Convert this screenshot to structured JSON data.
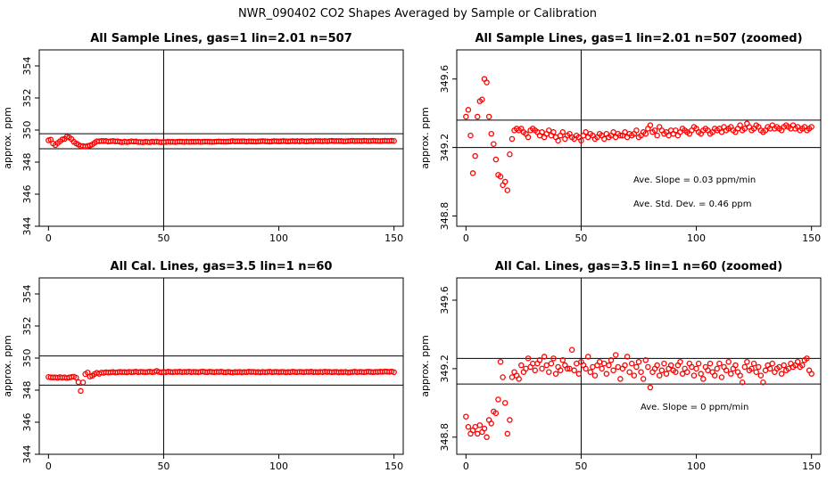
{
  "figure_title": "NWR_090402  CO2 Shapes Averaged by Sample or Calibration",
  "colors": {
    "points": "#ff0000",
    "axes": "#000000"
  },
  "chart_data": [
    {
      "type": "scatter",
      "title": "All Sample Lines, gas=1 lin=2.01 n=507",
      "xlabel": "",
      "ylabel": "approx. ppm",
      "xlim": [
        -4,
        154
      ],
      "ylim": [
        344,
        355
      ],
      "xticks": [
        0,
        50,
        100,
        150
      ],
      "yticks": [
        344,
        346,
        348,
        350,
        352,
        354
      ],
      "hlines": [
        349.77,
        348.83
      ],
      "vline": 50,
      "annotations": [],
      "x": [
        0,
        1,
        2,
        3,
        4,
        5,
        6,
        7,
        8,
        9,
        10,
        11,
        12,
        13,
        14,
        15,
        16,
        17,
        18,
        19,
        20,
        21,
        22,
        23,
        24,
        25,
        26,
        27,
        28,
        29,
        30,
        31,
        32,
        33,
        34,
        35,
        36,
        37,
        38,
        39,
        40,
        41,
        42,
        43,
        44,
        45,
        46,
        47,
        48,
        49,
        50,
        51,
        52,
        53,
        54,
        55,
        56,
        57,
        58,
        59,
        60,
        61,
        62,
        63,
        64,
        65,
        66,
        67,
        68,
        69,
        70,
        71,
        72,
        73,
        74,
        75,
        76,
        77,
        78,
        79,
        80,
        81,
        82,
        83,
        84,
        85,
        86,
        87,
        88,
        89,
        90,
        91,
        92,
        93,
        94,
        95,
        96,
        97,
        98,
        99,
        100,
        101,
        102,
        103,
        104,
        105,
        106,
        107,
        108,
        109,
        110,
        111,
        112,
        113,
        114,
        115,
        116,
        117,
        118,
        119,
        120,
        121,
        122,
        123,
        124,
        125,
        126,
        127,
        128,
        129,
        130,
        131,
        132,
        133,
        134,
        135,
        136,
        137,
        138,
        139,
        140,
        141,
        142,
        143,
        144,
        145,
        146,
        147,
        148,
        149,
        150
      ],
      "y": [
        349.36,
        349.4,
        349.16,
        349.06,
        349.19,
        349.3,
        349.42,
        349.45,
        349.58,
        349.54,
        349.44,
        349.27,
        349.17,
        349.09,
        349.01,
        349.0,
        348.97,
        349.01,
        349.04,
        349.1,
        349.2,
        349.3,
        349.3,
        349.32,
        349.31,
        349.32,
        349.28,
        349.3,
        349.32,
        349.29,
        349.3,
        349.27,
        349.24,
        349.28,
        349.25,
        349.27,
        349.3,
        349.28,
        349.29,
        349.25,
        349.26,
        349.24,
        349.27,
        349.26,
        349.24,
        349.28,
        349.26,
        349.28,
        349.25,
        349.24,
        349.26,
        349.25,
        349.28,
        349.26,
        349.27,
        349.25,
        349.27,
        349.28,
        349.27,
        349.26,
        349.28,
        349.26,
        349.27,
        349.27,
        349.27,
        349.28,
        349.26,
        349.27,
        349.28,
        349.28,
        349.27,
        349.26,
        349.27,
        349.28,
        349.29,
        349.28,
        349.28,
        349.27,
        349.28,
        349.29,
        349.31,
        349.29,
        349.3,
        349.29,
        349.3,
        349.3,
        349.28,
        349.3,
        349.29,
        349.29,
        349.28,
        349.29,
        349.3,
        349.31,
        349.3,
        349.29,
        349.28,
        349.29,
        349.31,
        349.3,
        349.29,
        349.3,
        349.31,
        349.3,
        349.29,
        349.3,
        349.31,
        349.3,
        349.31,
        349.29,
        349.32,
        349.3,
        349.29,
        349.3,
        349.31,
        349.3,
        349.32,
        349.31,
        349.31,
        349.3,
        349.32,
        349.3,
        349.32,
        349.33,
        349.31,
        349.32,
        349.31,
        349.32,
        349.3,
        349.3,
        349.31,
        349.32,
        349.33,
        349.31,
        349.32,
        349.32,
        349.31,
        349.33,
        349.32,
        349.31,
        349.32,
        349.33,
        349.32,
        349.32,
        349.31,
        349.32,
        349.33,
        349.32,
        349.32,
        349.33,
        349.32
      ]
    },
    {
      "type": "scatter",
      "title": "All Sample Lines, gas=1 lin=2.01 n=507 (zoomed)",
      "xlabel": "",
      "ylabel": "approx. ppm",
      "xlim": [
        -4,
        154
      ],
      "ylim": [
        348.74,
        349.77
      ],
      "xticks": [
        0,
        50,
        100,
        150
      ],
      "yticks": [
        348.8,
        349.2,
        349.6
      ],
      "hlines": [
        349.36,
        349.2
      ],
      "vline": 50,
      "annotations": [
        "Ave. Slope =  0.03  ppm/min",
        "Ave. Std. Dev. =  0.46  ppm"
      ],
      "x": [
        0,
        1,
        2,
        3,
        4,
        5,
        6,
        7,
        8,
        9,
        10,
        11,
        12,
        13,
        14,
        15,
        16,
        17,
        18,
        19,
        20,
        21,
        22,
        23,
        24,
        25,
        26,
        27,
        28,
        29,
        30,
        31,
        32,
        33,
        34,
        35,
        36,
        37,
        38,
        39,
        40,
        41,
        42,
        43,
        44,
        45,
        46,
        47,
        48,
        49,
        50,
        51,
        52,
        53,
        54,
        55,
        56,
        57,
        58,
        59,
        60,
        61,
        62,
        63,
        64,
        65,
        66,
        67,
        68,
        69,
        70,
        71,
        72,
        73,
        74,
        75,
        76,
        77,
        78,
        79,
        80,
        81,
        82,
        83,
        84,
        85,
        86,
        87,
        88,
        89,
        90,
        91,
        92,
        93,
        94,
        95,
        96,
        97,
        98,
        99,
        100,
        101,
        102,
        103,
        104,
        105,
        106,
        107,
        108,
        109,
        110,
        111,
        112,
        113,
        114,
        115,
        116,
        117,
        118,
        119,
        120,
        121,
        122,
        123,
        124,
        125,
        126,
        127,
        128,
        129,
        130,
        131,
        132,
        133,
        134,
        135,
        136,
        137,
        138,
        139,
        140,
        141,
        142,
        143,
        144,
        145,
        146,
        147,
        148,
        149,
        150
      ],
      "y": [
        349.38,
        349.42,
        349.27,
        349.05,
        349.15,
        349.38,
        349.47,
        349.48,
        349.6,
        349.58,
        349.38,
        349.28,
        349.22,
        349.13,
        349.04,
        349.03,
        348.98,
        349.0,
        348.95,
        349.16,
        349.25,
        349.3,
        349.31,
        349.3,
        349.31,
        349.29,
        349.28,
        349.26,
        349.3,
        349.31,
        349.3,
        349.29,
        349.27,
        349.29,
        349.26,
        349.28,
        349.3,
        349.27,
        349.29,
        349.26,
        349.24,
        349.27,
        349.29,
        349.25,
        349.27,
        349.28,
        349.26,
        349.25,
        349.27,
        349.26,
        349.24,
        349.27,
        349.29,
        349.26,
        349.28,
        349.27,
        349.25,
        349.26,
        349.28,
        349.27,
        349.25,
        349.28,
        349.26,
        349.27,
        349.29,
        349.26,
        349.28,
        349.27,
        349.27,
        349.29,
        349.26,
        349.28,
        349.27,
        349.28,
        349.3,
        349.26,
        349.27,
        349.29,
        349.28,
        349.31,
        349.33,
        349.29,
        349.3,
        349.27,
        349.32,
        349.3,
        349.28,
        349.29,
        349.27,
        349.3,
        349.28,
        349.3,
        349.27,
        349.29,
        349.31,
        349.3,
        349.29,
        349.28,
        349.3,
        349.32,
        349.31,
        349.29,
        349.28,
        349.3,
        349.31,
        349.3,
        349.28,
        349.29,
        349.31,
        349.3,
        349.31,
        349.29,
        349.32,
        349.3,
        349.31,
        349.32,
        349.3,
        349.29,
        349.31,
        349.33,
        349.3,
        349.31,
        349.34,
        349.32,
        349.3,
        349.31,
        349.33,
        349.32,
        349.3,
        349.29,
        349.3,
        349.32,
        349.31,
        349.33,
        349.31,
        349.32,
        349.31,
        349.3,
        349.32,
        349.33,
        349.32,
        349.31,
        349.33,
        349.31,
        349.32,
        349.3,
        349.31,
        349.32,
        349.3,
        349.31,
        349.32
      ]
    },
    {
      "type": "scatter",
      "title": "All Cal. Lines, gas=3.5 lin=1 n=60",
      "xlabel": "",
      "ylabel": "approx. ppm",
      "xlim": [
        -4,
        154
      ],
      "ylim": [
        344,
        355
      ],
      "xticks": [
        0,
        50,
        100,
        150
      ],
      "yticks": [
        344,
        346,
        348,
        350,
        352,
        354
      ],
      "hlines": [
        350.13,
        348.31
      ],
      "vline": 50,
      "annotations": [],
      "x": [
        0,
        1,
        2,
        3,
        4,
        5,
        6,
        7,
        8,
        9,
        10,
        11,
        12,
        13,
        14,
        15,
        16,
        17,
        18,
        19,
        20,
        21,
        22,
        23,
        24,
        25,
        26,
        27,
        28,
        29,
        30,
        31,
        32,
        33,
        34,
        35,
        36,
        37,
        38,
        39,
        40,
        41,
        42,
        43,
        44,
        45,
        46,
        47,
        48,
        49,
        50,
        51,
        52,
        53,
        54,
        55,
        56,
        57,
        58,
        59,
        60,
        61,
        62,
        63,
        64,
        65,
        66,
        67,
        68,
        69,
        70,
        71,
        72,
        73,
        74,
        75,
        76,
        77,
        78,
        79,
        80,
        81,
        82,
        83,
        84,
        85,
        86,
        87,
        88,
        89,
        90,
        91,
        92,
        93,
        94,
        95,
        96,
        97,
        98,
        99,
        100,
        101,
        102,
        103,
        104,
        105,
        106,
        107,
        108,
        109,
        110,
        111,
        112,
        113,
        114,
        115,
        116,
        117,
        118,
        119,
        120,
        121,
        122,
        123,
        124,
        125,
        126,
        127,
        128,
        129,
        130,
        131,
        132,
        133,
        134,
        135,
        136,
        137,
        138,
        139,
        140,
        141,
        142,
        143,
        144,
        145,
        146,
        147,
        148,
        149,
        150
      ],
      "y": [
        348.82,
        348.8,
        348.79,
        348.8,
        348.77,
        348.81,
        348.78,
        348.8,
        348.76,
        348.79,
        348.82,
        348.84,
        348.78,
        348.5,
        347.95,
        348.48,
        349.0,
        349.1,
        348.85,
        348.9,
        349.0,
        349.08,
        349.02,
        349.1,
        349.08,
        349.12,
        349.1,
        349.11,
        349.13,
        349.1,
        349.12,
        349.14,
        349.12,
        349.13,
        349.11,
        349.14,
        349.12,
        349.13,
        349.15,
        349.12,
        349.14,
        349.13,
        349.12,
        349.13,
        349.15,
        349.12,
        349.14,
        349.2,
        349.13,
        349.11,
        349.14,
        349.12,
        349.15,
        349.13,
        349.12,
        349.14,
        349.13,
        349.15,
        349.12,
        349.14,
        349.13,
        349.15,
        349.12,
        349.14,
        349.13,
        349.12,
        349.14,
        349.16,
        349.13,
        349.12,
        349.15,
        349.13,
        349.12,
        349.14,
        349.13,
        349.15,
        349.12,
        349.11,
        349.14,
        349.12,
        349.1,
        349.13,
        349.12,
        349.14,
        349.11,
        349.13,
        349.12,
        349.15,
        349.13,
        349.14,
        349.12,
        349.13,
        349.11,
        349.14,
        349.12,
        349.13,
        349.15,
        349.12,
        349.13,
        349.14,
        349.12,
        349.13,
        349.14,
        349.11,
        349.13,
        349.12,
        349.15,
        349.13,
        349.12,
        349.14,
        349.13,
        349.12,
        349.14,
        349.13,
        349.15,
        349.12,
        349.13,
        349.12,
        349.14,
        349.12,
        349.15,
        349.13,
        349.14,
        349.12,
        349.13,
        349.14,
        349.11,
        349.13,
        349.12,
        349.14,
        349.1,
        349.12,
        349.13,
        349.15,
        349.12,
        349.14,
        349.13,
        349.12,
        349.14,
        349.15,
        349.13,
        349.12,
        349.14,
        349.13,
        349.15,
        349.14,
        349.16,
        349.15,
        349.14,
        349.16,
        349.12
      ]
    },
    {
      "type": "scatter",
      "title": "All Cal. Lines, gas=3.5 lin=1 n=60 (zoomed)",
      "xlabel": "",
      "ylabel": "approx. ppm",
      "xlim": [
        -4,
        154
      ],
      "ylim": [
        348.7,
        349.73
      ],
      "xticks": [
        0,
        50,
        100,
        150
      ],
      "yticks": [
        348.8,
        349.2,
        349.6
      ],
      "hlines": [
        349.26,
        349.11
      ],
      "vline": 50,
      "annotations": [
        "Ave. Slope =  0  ppm/min"
      ],
      "x": [
        0,
        1,
        2,
        3,
        4,
        5,
        6,
        7,
        8,
        9,
        10,
        11,
        12,
        13,
        14,
        15,
        16,
        17,
        18,
        19,
        20,
        21,
        22,
        23,
        24,
        25,
        26,
        27,
        28,
        29,
        30,
        31,
        32,
        33,
        34,
        35,
        36,
        37,
        38,
        39,
        40,
        41,
        42,
        43,
        44,
        45,
        46,
        47,
        48,
        49,
        50,
        51,
        52,
        53,
        54,
        55,
        56,
        57,
        58,
        59,
        60,
        61,
        62,
        63,
        64,
        65,
        66,
        67,
        68,
        69,
        70,
        71,
        72,
        73,
        74,
        75,
        76,
        77,
        78,
        79,
        80,
        81,
        82,
        83,
        84,
        85,
        86,
        87,
        88,
        89,
        90,
        91,
        92,
        93,
        94,
        95,
        96,
        97,
        98,
        99,
        100,
        101,
        102,
        103,
        104,
        105,
        106,
        107,
        108,
        109,
        110,
        111,
        112,
        113,
        114,
        115,
        116,
        117,
        118,
        119,
        120,
        121,
        122,
        123,
        124,
        125,
        126,
        127,
        128,
        129,
        130,
        131,
        132,
        133,
        134,
        135,
        136,
        137,
        138,
        139,
        140,
        141,
        142,
        143,
        144,
        145,
        146,
        147,
        148,
        149,
        150
      ],
      "y": [
        348.92,
        348.86,
        348.82,
        348.84,
        348.86,
        348.82,
        348.87,
        348.83,
        348.85,
        348.8,
        348.9,
        348.88,
        348.95,
        348.94,
        349.02,
        349.24,
        349.15,
        349.0,
        348.82,
        348.9,
        349.15,
        349.18,
        349.16,
        349.14,
        349.22,
        349.18,
        349.2,
        349.26,
        349.21,
        349.23,
        349.19,
        349.23,
        349.25,
        349.2,
        349.27,
        349.22,
        349.18,
        349.23,
        349.26,
        349.17,
        349.21,
        349.19,
        349.25,
        349.22,
        349.2,
        349.2,
        349.31,
        349.19,
        349.23,
        349.17,
        349.24,
        349.22,
        349.2,
        349.27,
        349.18,
        349.21,
        349.16,
        349.22,
        349.24,
        349.2,
        349.23,
        349.17,
        349.22,
        349.25,
        349.19,
        349.28,
        349.21,
        349.14,
        349.2,
        349.22,
        349.27,
        349.18,
        349.23,
        349.16,
        349.21,
        349.24,
        349.18,
        349.14,
        349.25,
        349.21,
        349.09,
        349.18,
        349.2,
        349.22,
        349.16,
        349.19,
        349.23,
        349.17,
        349.2,
        349.22,
        349.19,
        349.18,
        349.22,
        349.24,
        349.17,
        349.2,
        349.18,
        349.23,
        349.21,
        349.16,
        349.2,
        349.23,
        349.17,
        349.14,
        349.21,
        349.19,
        349.23,
        349.18,
        349.16,
        349.2,
        349.23,
        349.15,
        349.21,
        349.19,
        349.24,
        349.17,
        349.2,
        349.22,
        349.18,
        349.16,
        349.12,
        349.21,
        349.24,
        349.19,
        349.2,
        349.23,
        349.18,
        349.21,
        349.16,
        349.12,
        349.19,
        349.22,
        349.2,
        349.23,
        349.18,
        349.2,
        349.21,
        349.17,
        349.22,
        349.19,
        349.2,
        349.23,
        349.21,
        349.22,
        349.24,
        349.21,
        349.22,
        349.25,
        349.26,
        349.19,
        349.17
      ]
    }
  ]
}
